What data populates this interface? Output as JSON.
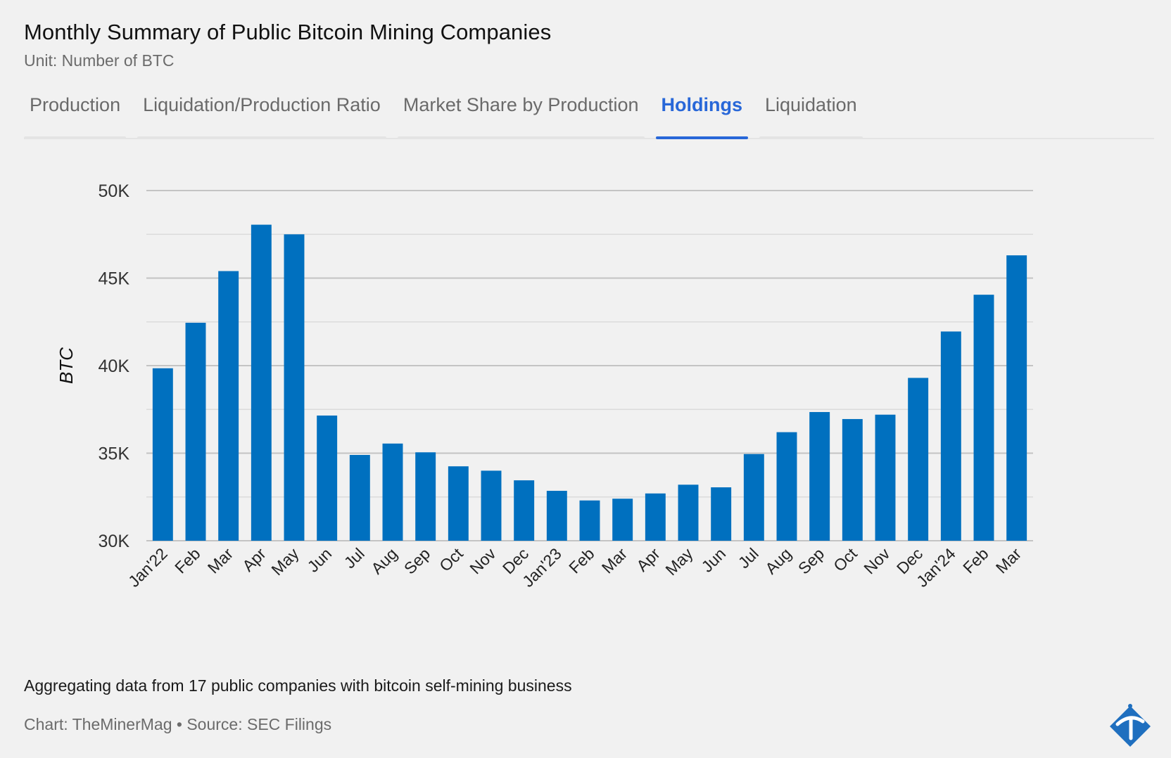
{
  "header": {
    "title": "Monthly Summary of Public Bitcoin Mining Companies",
    "subtitle": "Unit: Number of BTC"
  },
  "tabs": [
    {
      "label": "Production",
      "active": false
    },
    {
      "label": "Liquidation/Production Ratio",
      "active": false
    },
    {
      "label": "Market Share by Production",
      "active": false
    },
    {
      "label": "Holdings",
      "active": true
    },
    {
      "label": "Liquidation",
      "active": false
    }
  ],
  "footer": {
    "note": "Aggregating data from 17 public companies with bitcoin self-mining business",
    "credit": "Chart: TheMinerMag • Source: SEC Filings"
  },
  "colors": {
    "bar": "#0070bf",
    "active_tab": "#2867d8"
  },
  "icons": [
    "pickaxe-logo-icon"
  ],
  "chart_data": {
    "type": "bar",
    "ylabel": "BTC",
    "ylim": [
      30000,
      50000
    ],
    "yticks": [
      30000,
      35000,
      40000,
      45000,
      50000
    ],
    "ytick_labels": [
      "30K",
      "35K",
      "40K",
      "45K",
      "50K"
    ],
    "grid": true,
    "categories": [
      "Jan'22",
      "Feb",
      "Mar",
      "Apr",
      "May",
      "Jun",
      "Jul",
      "Aug",
      "Sep",
      "Oct",
      "Nov",
      "Dec",
      "Jan'23",
      "Feb",
      "Mar",
      "Apr",
      "May",
      "Jun",
      "Jul",
      "Aug",
      "Sep",
      "Oct",
      "Nov",
      "Dec",
      "Jan'24",
      "Feb",
      "Mar"
    ],
    "values": [
      39850,
      42450,
      45400,
      48050,
      47500,
      37150,
      34900,
      35550,
      35050,
      34250,
      34000,
      33450,
      32850,
      32300,
      32400,
      32700,
      33200,
      33050,
      34950,
      36200,
      37350,
      36950,
      37200,
      39300,
      41950,
      44050,
      46300
    ]
  }
}
